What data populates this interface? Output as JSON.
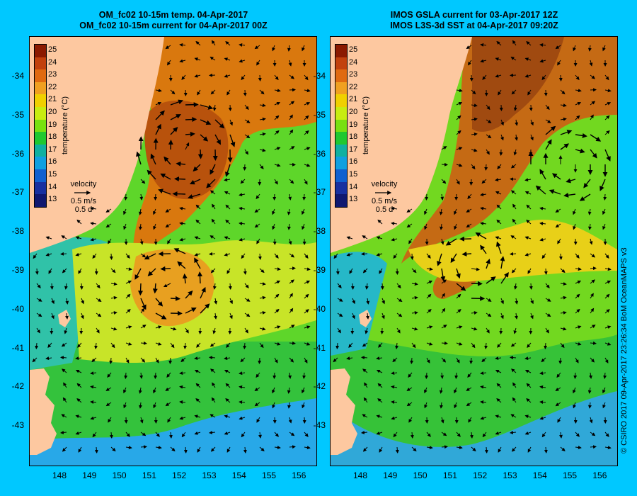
{
  "panels": [
    {
      "title_line1": "OM_fc02 10-15m temp. 04-Apr-2017",
      "title_line2": "OM_fc02 10-15m current for 04-Apr-2017 00Z",
      "legend": {
        "title": "temperature (°C)",
        "velocity_label": "velocity",
        "velocity_scale": "0.5 m/s",
        "velocity_time": "0.5 d"
      }
    },
    {
      "title_line1": "IMOS GSLA current for 03-Apr-2017 12Z",
      "title_line2": "IMOS L3S-3d SST at 04-Apr-2017 09:20Z",
      "legend": {
        "title": "temperature (°C)",
        "velocity_label": "velocity",
        "velocity_scale": "0.5 m/s",
        "velocity_time": "0.5 d"
      }
    }
  ],
  "axes": {
    "lat_ticks": [
      "-34",
      "-35",
      "-36",
      "-37",
      "-38",
      "-39",
      "-40",
      "-41",
      "-42",
      "-43"
    ],
    "lon_ticks": [
      "148",
      "149",
      "150",
      "151",
      "152",
      "153",
      "154",
      "155",
      "156"
    ]
  },
  "colorbar": {
    "levels": [
      "25",
      "24",
      "23",
      "22",
      "21",
      "20",
      "19",
      "18",
      "17",
      "16",
      "15",
      "14",
      "13"
    ],
    "colors": [
      "#8b1a00",
      "#c2410c",
      "#e06a10",
      "#f0a020",
      "#f0d000",
      "#c8ec10",
      "#78e010",
      "#20c830",
      "#10b0a0",
      "#10a0e0",
      "#1060d0",
      "#1830a0",
      "#101870"
    ]
  },
  "credit": "© CSIRO 2017   09-Apr-2017 23:26:34 BoM OceanMAPS v3"
}
